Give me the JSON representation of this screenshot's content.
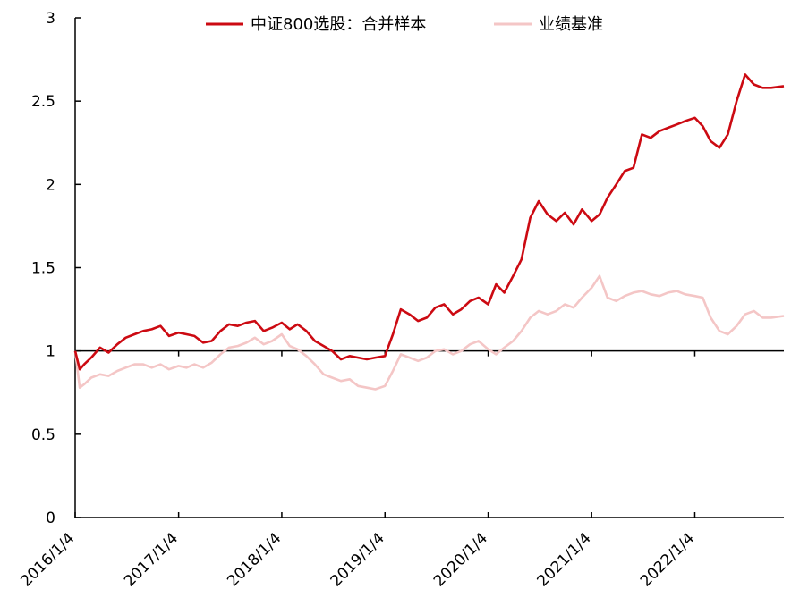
{
  "chart_data": {
    "type": "line",
    "title": "",
    "xlabel": "",
    "ylabel": "",
    "ylim": [
      0,
      3
    ],
    "yticks": [
      "0",
      "0.5",
      "1",
      "1.5",
      "2",
      "2.5",
      "3"
    ],
    "xlim": [
      "2016-01-04",
      "2022-11-15"
    ],
    "xtick_labels": [
      "2016/1/4",
      "2017/1/4",
      "2018/1/4",
      "2019/1/4",
      "2020/1/4",
      "2021/1/4",
      "2022/1/4"
    ],
    "xtick_dates": [
      "2016-01-04",
      "2017-01-04",
      "2018-01-04",
      "2019-01-04",
      "2020-01-04",
      "2021-01-04",
      "2022-01-04"
    ],
    "legend_position": "top",
    "grid": false,
    "reference_line": 1,
    "colors": {
      "main": "#cc0a12",
      "benchmark": "#f4c6c6",
      "axis": "#000000"
    },
    "x": [
      "2016-01-04",
      "2016-01-20",
      "2016-02-05",
      "2016-03-01",
      "2016-04-01",
      "2016-05-01",
      "2016-06-01",
      "2016-07-01",
      "2016-08-01",
      "2016-09-01",
      "2016-10-01",
      "2016-11-01",
      "2016-12-01",
      "2017-01-04",
      "2017-02-01",
      "2017-03-01",
      "2017-04-01",
      "2017-05-01",
      "2017-06-01",
      "2017-07-01",
      "2017-08-01",
      "2017-09-01",
      "2017-10-01",
      "2017-11-01",
      "2017-12-01",
      "2018-01-04",
      "2018-02-01",
      "2018-03-01",
      "2018-04-01",
      "2018-05-01",
      "2018-06-01",
      "2018-07-01",
      "2018-08-01",
      "2018-09-01",
      "2018-10-01",
      "2018-11-01",
      "2018-12-01",
      "2019-01-04",
      "2019-02-01",
      "2019-03-01",
      "2019-04-01",
      "2019-05-01",
      "2019-06-01",
      "2019-07-01",
      "2019-08-01",
      "2019-09-01",
      "2019-10-01",
      "2019-11-01",
      "2019-12-01",
      "2020-01-04",
      "2020-02-01",
      "2020-03-01",
      "2020-04-01",
      "2020-05-01",
      "2020-06-01",
      "2020-07-01",
      "2020-08-01",
      "2020-09-01",
      "2020-10-01",
      "2020-11-01",
      "2020-12-01",
      "2021-01-04",
      "2021-02-01",
      "2021-03-01",
      "2021-04-01",
      "2021-05-01",
      "2021-06-01",
      "2021-07-01",
      "2021-08-01",
      "2021-09-01",
      "2021-10-01",
      "2021-11-01",
      "2021-12-01",
      "2022-01-04",
      "2022-02-01",
      "2022-03-01",
      "2022-04-01",
      "2022-05-01",
      "2022-06-01",
      "2022-07-01",
      "2022-08-01",
      "2022-09-01",
      "2022-10-01",
      "2022-11-15"
    ],
    "series": [
      {
        "name": "中证800选股：合并样本",
        "values": [
          1.0,
          0.89,
          0.92,
          0.96,
          1.02,
          0.99,
          1.04,
          1.08,
          1.1,
          1.12,
          1.13,
          1.15,
          1.09,
          1.11,
          1.1,
          1.09,
          1.05,
          1.06,
          1.12,
          1.16,
          1.15,
          1.17,
          1.18,
          1.12,
          1.14,
          1.17,
          1.13,
          1.16,
          1.12,
          1.06,
          1.03,
          1.0,
          0.95,
          0.97,
          0.96,
          0.95,
          0.96,
          0.97,
          1.1,
          1.25,
          1.22,
          1.18,
          1.2,
          1.26,
          1.28,
          1.22,
          1.25,
          1.3,
          1.32,
          1.28,
          1.4,
          1.35,
          1.45,
          1.55,
          1.8,
          1.9,
          1.82,
          1.78,
          1.83,
          1.76,
          1.85,
          1.78,
          1.82,
          1.92,
          2.0,
          2.08,
          2.1,
          2.3,
          2.28,
          2.32,
          2.34,
          2.36,
          2.38,
          2.4,
          2.35,
          2.26,
          2.22,
          2.3,
          2.5,
          2.66,
          2.6,
          2.58,
          2.58,
          2.59
        ]
      },
      {
        "name": "业绩基准",
        "values": [
          1.0,
          0.78,
          0.8,
          0.84,
          0.86,
          0.85,
          0.88,
          0.9,
          0.92,
          0.92,
          0.9,
          0.92,
          0.89,
          0.91,
          0.9,
          0.92,
          0.9,
          0.93,
          0.98,
          1.02,
          1.03,
          1.05,
          1.08,
          1.04,
          1.06,
          1.1,
          1.03,
          1.01,
          0.97,
          0.92,
          0.86,
          0.84,
          0.82,
          0.83,
          0.79,
          0.78,
          0.77,
          0.79,
          0.88,
          0.98,
          0.96,
          0.94,
          0.96,
          1.0,
          1.01,
          0.98,
          1.0,
          1.04,
          1.06,
          1.01,
          0.98,
          1.02,
          1.06,
          1.12,
          1.2,
          1.24,
          1.22,
          1.24,
          1.28,
          1.26,
          1.32,
          1.38,
          1.45,
          1.32,
          1.3,
          1.33,
          1.35,
          1.36,
          1.34,
          1.33,
          1.35,
          1.36,
          1.34,
          1.33,
          1.32,
          1.2,
          1.12,
          1.1,
          1.15,
          1.22,
          1.24,
          1.2,
          1.2,
          1.21
        ]
      }
    ]
  }
}
